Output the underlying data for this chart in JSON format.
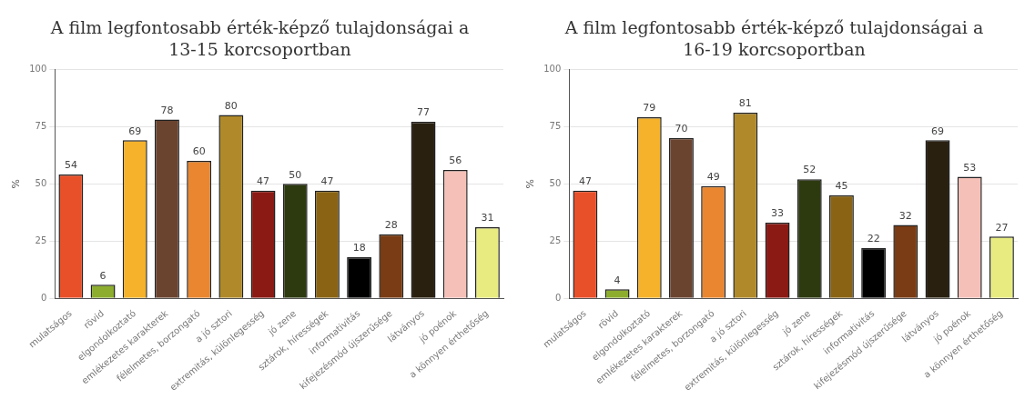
{
  "chart_data": [
    {
      "type": "bar",
      "title": "A film legfontosabb érték-képző tulajdonságai a 13-15 korcsoportban",
      "ylabel": "%",
      "categories": [
        "mulatságos",
        "rövid",
        "elgondolkoztató",
        "emlékezetes karakterek",
        "félelmetes, borzongató",
        "a jó sztori",
        "extremitás, különlegesség",
        "jó zene",
        "sztárok, hírességek",
        "informativitás",
        "kifejezésmód újszerűsége",
        "látványos",
        "jó poénok",
        "a könnyen érthetőség"
      ],
      "values": [
        54,
        6,
        69,
        78,
        60,
        80,
        47,
        50,
        47,
        18,
        28,
        77,
        56,
        31
      ],
      "colors": [
        "#e8502a",
        "#8cad2e",
        "#f5b22a",
        "#6b4430",
        "#e9862f",
        "#b08a2a",
        "#8b1a14",
        "#2d3a10",
        "#8a6414",
        "#000000",
        "#7a3c14",
        "#2a2010",
        "#f5c0b8",
        "#e8ec80"
      ],
      "ylim": [
        0,
        100
      ],
      "yticks": [
        0,
        25,
        50,
        75,
        100
      ],
      "grid": "y",
      "data_labels": true,
      "legend": false
    },
    {
      "type": "bar",
      "title": "A film legfontosabb érték-képző tulajdonságai a 16-19 korcsoportban",
      "ylabel": "%",
      "categories": [
        "mulatságos",
        "rövid",
        "elgondolkoztató",
        "emlékezetes karakterek",
        "félelmetes, borzongató",
        "a jó sztori",
        "extremitás, különlegesség",
        "jó zene",
        "sztárok, hírességek",
        "informativitás",
        "kifejezésmód újszerűsége",
        "látványos",
        "jó poénok",
        "a könnyen érthetőség"
      ],
      "values": [
        47,
        4,
        79,
        70,
        49,
        81,
        33,
        52,
        45,
        22,
        32,
        69,
        53,
        27
      ],
      "colors": [
        "#e8502a",
        "#8cad2e",
        "#f5b22a",
        "#6b4430",
        "#e9862f",
        "#b08a2a",
        "#8b1a14",
        "#2d3a10",
        "#8a6414",
        "#000000",
        "#7a3c14",
        "#2a2010",
        "#f5c0b8",
        "#e8ec80"
      ],
      "ylim": [
        0,
        100
      ],
      "yticks": [
        0,
        25,
        50,
        75,
        100
      ],
      "grid": "y",
      "data_labels": true,
      "legend": false
    }
  ]
}
